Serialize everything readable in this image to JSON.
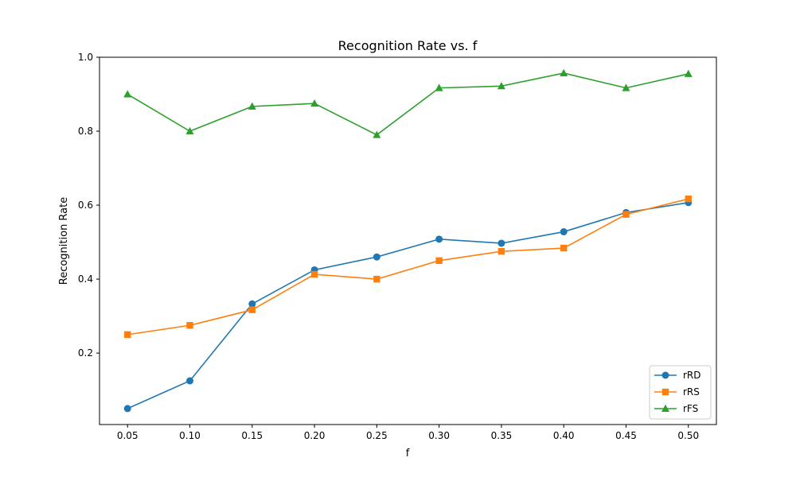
{
  "chart_data": {
    "type": "line",
    "title": "Recognition Rate vs. f",
    "xlabel": "f",
    "ylabel": "Recognition Rate",
    "x": [
      0.05,
      0.1,
      0.15,
      0.2,
      0.25,
      0.3,
      0.35,
      0.4,
      0.45,
      0.5
    ],
    "x_tick_labels": [
      "0.05",
      "0.10",
      "0.15",
      "0.20",
      "0.25",
      "0.30",
      "0.35",
      "0.40",
      "0.45",
      "0.50"
    ],
    "y_ticks": [
      0.2,
      0.4,
      0.6,
      0.8,
      1.0
    ],
    "y_tick_labels": [
      "0.2",
      "0.4",
      "0.6",
      "0.8",
      "1.0"
    ],
    "xlim": [
      0.0275,
      0.5225
    ],
    "ylim": [
      0.0068,
      1.0
    ],
    "grid": false,
    "legend_position": "bottom-right",
    "series": [
      {
        "name": "rRD",
        "color": "#1f77b4",
        "marker": "circle",
        "values": [
          0.05,
          0.125,
          0.333,
          0.425,
          0.46,
          0.508,
          0.497,
          0.528,
          0.58,
          0.607
        ]
      },
      {
        "name": "rRS",
        "color": "#ff7f0e",
        "marker": "square",
        "values": [
          0.25,
          0.275,
          0.317,
          0.413,
          0.4,
          0.45,
          0.475,
          0.484,
          0.575,
          0.617
        ]
      },
      {
        "name": "rFS",
        "color": "#2ca02c",
        "marker": "triangle",
        "values": [
          0.9,
          0.8,
          0.867,
          0.875,
          0.79,
          0.917,
          0.922,
          0.957,
          0.917,
          0.955
        ]
      }
    ]
  }
}
